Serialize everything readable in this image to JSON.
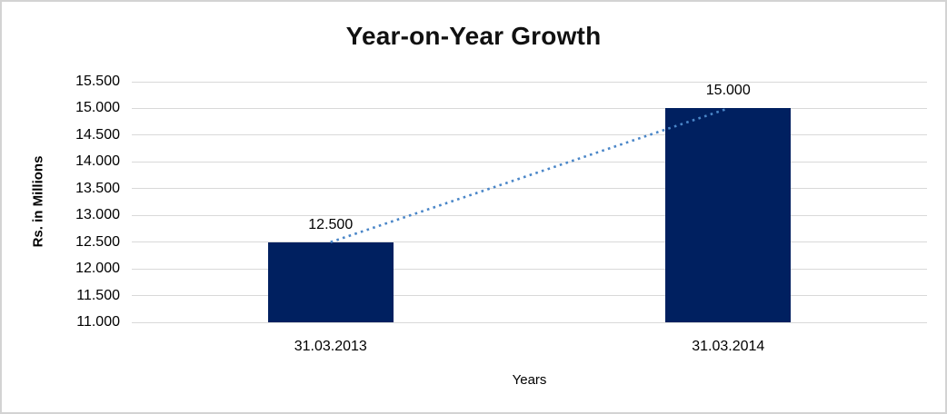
{
  "chart_data": {
    "type": "bar",
    "title": "Year-on-Year Growth",
    "xlabel": "Years",
    "ylabel": "Rs. in Millions",
    "categories": [
      "31.03.2013",
      "31.03.2014"
    ],
    "values": [
      12500,
      15000
    ],
    "data_labels": [
      "12.500",
      "15.000"
    ],
    "ylim": [
      11000,
      15500
    ],
    "ytick_step": 500,
    "ytick_values": [
      15500,
      15000,
      14500,
      14000,
      13500,
      13000,
      12500,
      12000,
      11500,
      11000
    ],
    "ytick_labels": [
      "15.500",
      "15.000",
      "14.500",
      "14.000",
      "13.500",
      "13.000",
      "12.500",
      "12.000",
      "11.500",
      "11.000"
    ],
    "grid": true,
    "legend": "none",
    "trendline": {
      "style": "dotted",
      "connects": "bar-tops",
      "color": "#4a86c8"
    },
    "colors": {
      "bar": "#002060",
      "trendline": "#4a86c8",
      "gridline": "#d9d9d9",
      "text": "#000000",
      "chart_border": "#d3d3d3",
      "background": "#ffffff"
    }
  }
}
